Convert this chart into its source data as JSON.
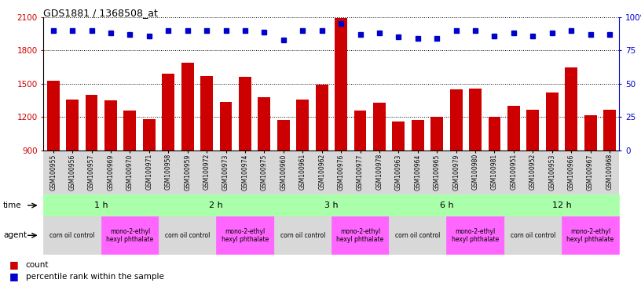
{
  "title": "GDS1881 / 1368508_at",
  "samples": [
    "GSM100955",
    "GSM100956",
    "GSM100957",
    "GSM100969",
    "GSM100970",
    "GSM100971",
    "GSM100958",
    "GSM100959",
    "GSM100972",
    "GSM100973",
    "GSM100974",
    "GSM100975",
    "GSM100960",
    "GSM100961",
    "GSM100962",
    "GSM100976",
    "GSM100977",
    "GSM100978",
    "GSM100963",
    "GSM100964",
    "GSM100965",
    "GSM100979",
    "GSM100980",
    "GSM100981",
    "GSM100951",
    "GSM100952",
    "GSM100953",
    "GSM100966",
    "GSM100967",
    "GSM100968"
  ],
  "counts": [
    1530,
    1360,
    1400,
    1350,
    1260,
    1185,
    1590,
    1690,
    1570,
    1340,
    1560,
    1380,
    1175,
    1360,
    1490,
    2095,
    1260,
    1330,
    1160,
    1175,
    1200,
    1450,
    1460,
    1200,
    1300,
    1270,
    1420,
    1650,
    1220,
    1270
  ],
  "percentile_ranks": [
    90,
    90,
    90,
    88,
    87,
    86,
    90,
    90,
    90,
    90,
    90,
    89,
    83,
    90,
    90,
    95,
    87,
    88,
    85,
    84,
    84,
    90,
    90,
    86,
    88,
    86,
    88,
    90,
    87,
    87
  ],
  "bar_color": "#cc0000",
  "dot_color": "#0000cc",
  "ylim_left": [
    900,
    2100
  ],
  "ylim_right": [
    0,
    100
  ],
  "yticks_left": [
    900,
    1200,
    1500,
    1800,
    2100
  ],
  "yticks_right": [
    0,
    25,
    50,
    75,
    100
  ],
  "time_groups": [
    {
      "label": "1 h",
      "start": 0,
      "end": 6
    },
    {
      "label": "2 h",
      "start": 6,
      "end": 12
    },
    {
      "label": "3 h",
      "start": 12,
      "end": 18
    },
    {
      "label": "6 h",
      "start": 18,
      "end": 24
    },
    {
      "label": "12 h",
      "start": 24,
      "end": 30
    }
  ],
  "agent_groups": [
    {
      "label": "corn oil control",
      "start": 0,
      "end": 3,
      "color": "#d8d8d8"
    },
    {
      "label": "mono-2-ethyl\nhexyl phthalate",
      "start": 3,
      "end": 6,
      "color": "#ff66ff"
    },
    {
      "label": "corn oil control",
      "start": 6,
      "end": 9,
      "color": "#d8d8d8"
    },
    {
      "label": "mono-2-ethyl\nhexyl phthalate",
      "start": 9,
      "end": 12,
      "color": "#ff66ff"
    },
    {
      "label": "corn oil control",
      "start": 12,
      "end": 15,
      "color": "#d8d8d8"
    },
    {
      "label": "mono-2-ethyl\nhexyl phthalate",
      "start": 15,
      "end": 18,
      "color": "#ff66ff"
    },
    {
      "label": "corn oil control",
      "start": 18,
      "end": 21,
      "color": "#d8d8d8"
    },
    {
      "label": "mono-2-ethyl\nhexyl phthalate",
      "start": 21,
      "end": 24,
      "color": "#ff66ff"
    },
    {
      "label": "corn oil control",
      "start": 24,
      "end": 27,
      "color": "#d8d8d8"
    },
    {
      "label": "mono-2-ethyl\nhexyl phthalate",
      "start": 27,
      "end": 30,
      "color": "#ff66ff"
    }
  ],
  "time_color": "#aaffaa",
  "sample_bg_color": "#d8d8d8",
  "legend_count_color": "#cc0000",
  "legend_dot_color": "#0000cc"
}
